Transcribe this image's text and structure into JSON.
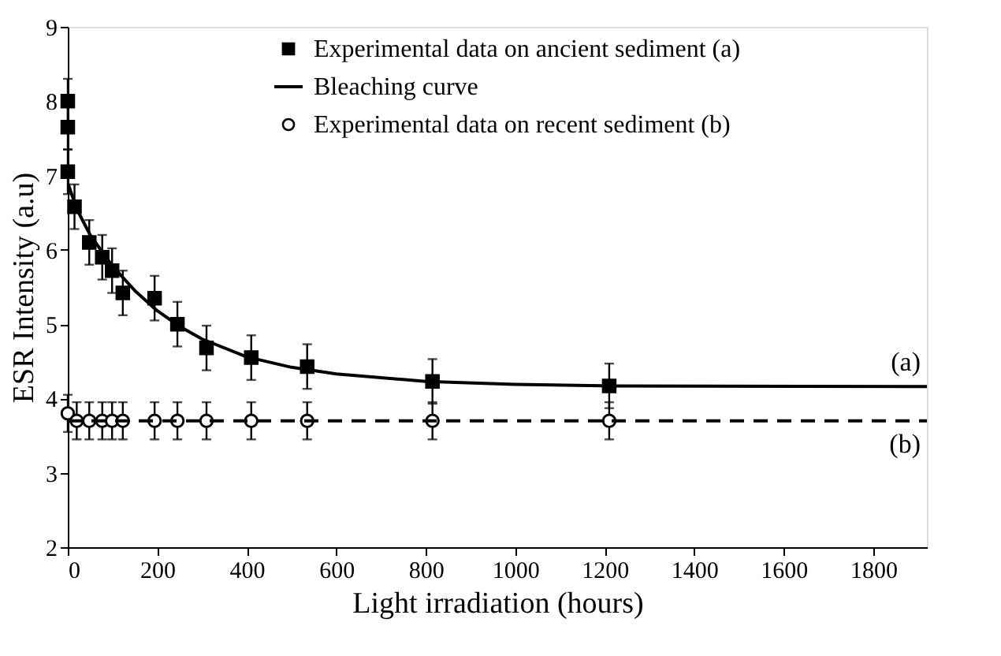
{
  "chart_data": {
    "type": "scatter",
    "xlabel": "Light irradiation  (hours)",
    "ylabel": "ESR Intensity (a.u)",
    "xlim": [
      0,
      1920
    ],
    "ylim": [
      2,
      9
    ],
    "xticks": [
      0,
      200,
      400,
      600,
      800,
      1000,
      1200,
      1400,
      1600,
      1800
    ],
    "yticks": [
      2,
      3,
      4,
      5,
      6,
      7,
      8,
      9
    ],
    "grid": false,
    "legend": "top right",
    "series": [
      {
        "name": "Experimental data on ancient sediment  (a)",
        "color": "#000000",
        "type": "scatter",
        "marker": "square",
        "x": [
          0,
          0,
          0,
          15,
          48,
          77,
          99,
          123,
          194,
          245,
          310,
          410,
          535,
          815,
          1210
        ],
        "values": [
          8.0,
          7.65,
          7.05,
          6.58,
          6.1,
          5.9,
          5.72,
          5.42,
          5.35,
          5.0,
          4.68,
          4.55,
          4.43,
          4.23,
          4.17
        ],
        "errors": [
          0.3,
          0.3,
          0.3,
          0.3,
          0.3,
          0.3,
          0.3,
          0.3,
          0.3,
          0.3,
          0.3,
          0.3,
          0.3,
          0.3,
          0.3
        ]
      },
      {
        "name": "Bleaching curve",
        "color": "#000000",
        "type": "line",
        "marker": "none",
        "line_style": "solid",
        "x": [
          0,
          20,
          50,
          100,
          150,
          200,
          250,
          300,
          400,
          500,
          600,
          800,
          1000,
          1200,
          1920
        ],
        "values": [
          6.9,
          6.55,
          6.2,
          5.78,
          5.45,
          5.18,
          4.97,
          4.8,
          4.56,
          4.42,
          4.33,
          4.23,
          4.19,
          4.17,
          4.16
        ]
      },
      {
        "name": "Experimental data on recent sediment  (b)",
        "color": "#000000",
        "type": "scatter",
        "marker": "circle",
        "x": [
          0,
          20,
          48,
          77,
          99,
          123,
          194,
          245,
          310,
          410,
          535,
          815,
          1210
        ],
        "values": [
          3.8,
          3.7,
          3.7,
          3.7,
          3.7,
          3.7,
          3.7,
          3.7,
          3.7,
          3.7,
          3.7,
          3.7,
          3.7
        ],
        "errors": [
          0.25,
          0.25,
          0.25,
          0.25,
          0.25,
          0.25,
          0.25,
          0.25,
          0.25,
          0.25,
          0.25,
          0.25,
          0.25
        ]
      },
      {
        "color": "#000000",
        "type": "line",
        "marker": "none",
        "line_style": "dashed",
        "x": [
          0,
          1920
        ],
        "values": [
          3.7,
          3.7
        ]
      }
    ],
    "annotations": [
      "(a)",
      "(b)"
    ]
  }
}
